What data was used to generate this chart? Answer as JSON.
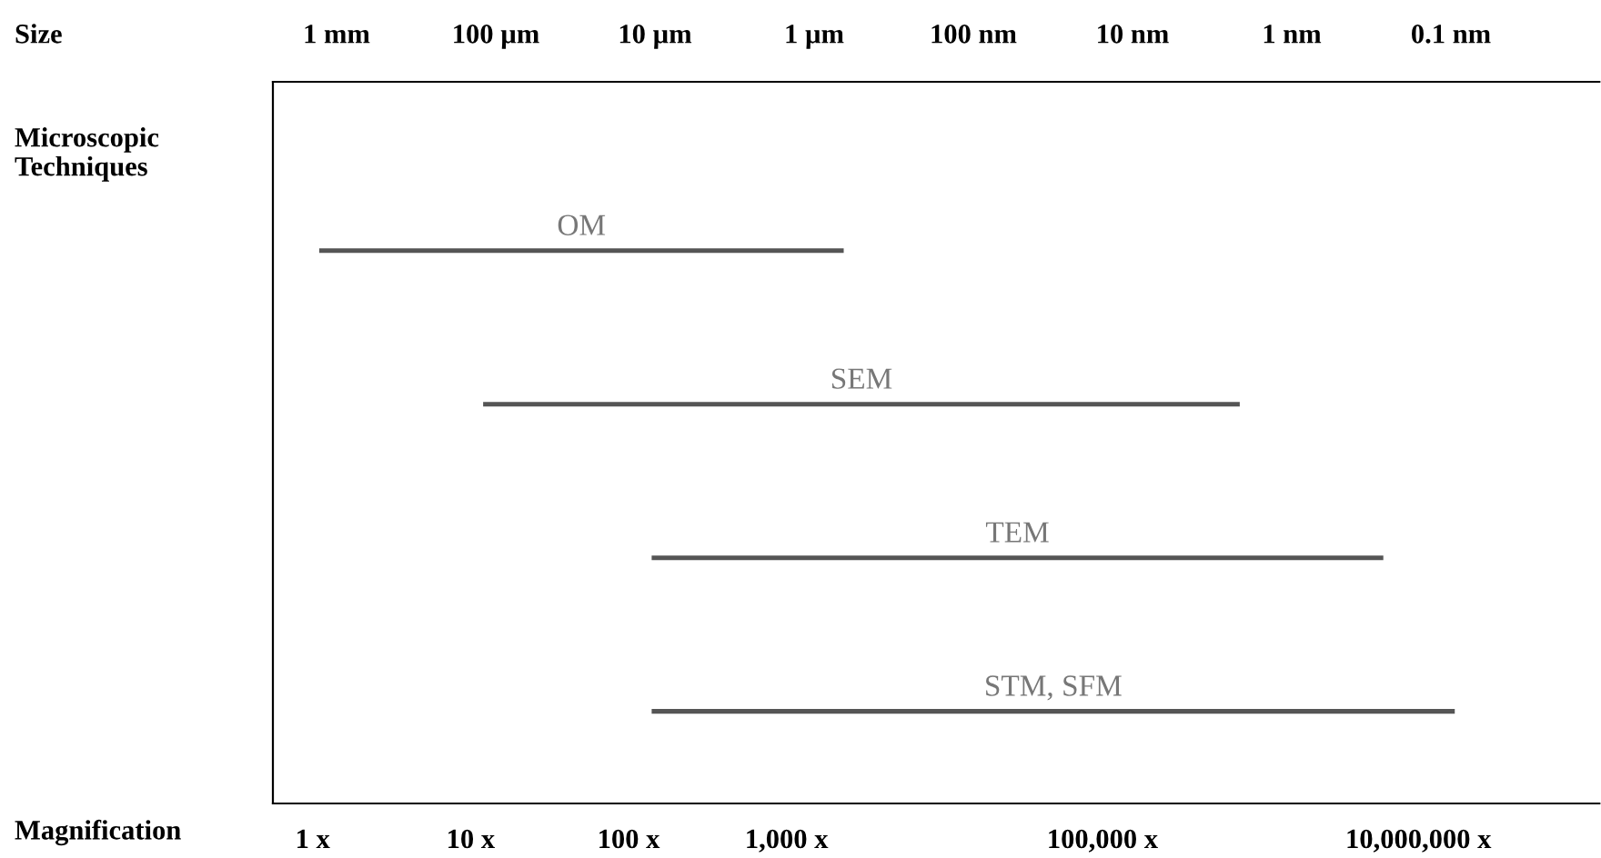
{
  "chart_data": {
    "type": "bar",
    "orientation": "horizontal",
    "log": "x",
    "categories": [
      "OM",
      "SEM",
      "TEM",
      "STM, SFM"
    ],
    "base": [
      1.1,
      12,
      140,
      140
    ],
    "values": [
      2300,
      740000,
      6000000,
      17000000
    ],
    "color": "#555555",
    "xlabel": "Magnification",
    "x2label": "Size",
    "ylabel": "Microscopic Techniques",
    "xlim": [
      0.56,
      140000000
    ],
    "xticks": [
      {
        "value": 1,
        "label": "1 x"
      },
      {
        "value": 10,
        "label": "10 x"
      },
      {
        "value": 100,
        "label": "100 x"
      },
      {
        "value": 1000,
        "label": "1,000 x"
      },
      {
        "value": 100000,
        "label": "100,000 x"
      },
      {
        "value": 10000000,
        "label": "10,000,000 x"
      }
    ],
    "annotations": [
      "1 mm",
      "100 µm",
      "10 µm",
      "1 µm",
      "100 nm",
      "10 nm",
      "1 nm",
      "0.1 nm"
    ],
    "grid": false,
    "legend": false
  }
}
